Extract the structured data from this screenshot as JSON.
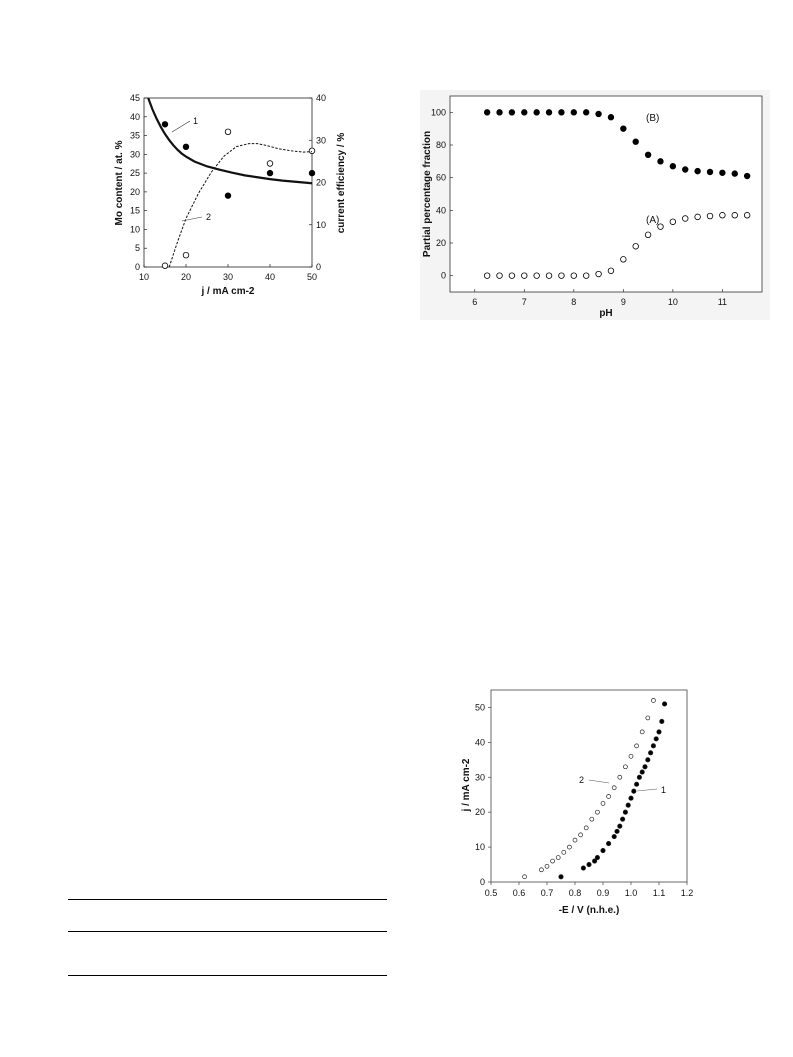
{
  "chart_data": [
    {
      "type": "scatter",
      "title": "",
      "xlabel": "j / mA cm-2",
      "ylabel": "Mo content / at. %",
      "y2label": "current efficiency / %",
      "xlim": [
        10,
        50
      ],
      "ylim": [
        0,
        45
      ],
      "y2lim": [
        0,
        40
      ],
      "xticks": [
        "10",
        "20",
        "30",
        "40",
        "50"
      ],
      "yticks": [
        "0",
        "5",
        "10",
        "15",
        "20",
        "25",
        "30",
        "35",
        "40",
        "45"
      ],
      "y2ticks": [
        "0",
        "10",
        "20",
        "30",
        "40"
      ],
      "grid": false,
      "annotations": [
        "1",
        "2"
      ],
      "series": [
        {
          "marker": "filled-circle",
          "axis": "left",
          "x": [
            15,
            20,
            30,
            40,
            50
          ],
          "y": [
            38,
            32,
            19,
            25,
            25
          ]
        },
        {
          "marker": "open-circle",
          "axis": "right",
          "x": [
            15,
            20,
            30,
            40,
            50
          ],
          "y": [
            0.3,
            2.8,
            32,
            24.5,
            27.5
          ]
        },
        {
          "line": "solid",
          "axis": "left",
          "x": [
            11,
            12,
            13,
            14,
            15,
            16,
            17,
            18,
            19,
            20,
            22,
            25,
            28,
            31,
            34,
            37,
            40,
            43,
            46,
            50
          ],
          "y": [
            45,
            42,
            39.5,
            37.3,
            35.4,
            33.8,
            32.4,
            31.2,
            30.2,
            29.4,
            28.1,
            26.8,
            25.9,
            25.1,
            24.4,
            23.9,
            23.4,
            23.0,
            22.7,
            22.3
          ]
        },
        {
          "line": "dashed",
          "axis": "right",
          "x": [
            16,
            18,
            20,
            23,
            26,
            29,
            32,
            35,
            37,
            39,
            42,
            45,
            48,
            50
          ],
          "y": [
            0,
            6,
            11.5,
            17.5,
            22.4,
            26.2,
            28.5,
            29.2,
            29.2,
            28.8,
            28.0,
            27.5,
            27.2,
            27.3
          ]
        }
      ]
    },
    {
      "type": "scatter",
      "title": "",
      "xlabel": "pH",
      "ylabel": "Partial percentage fraction",
      "xlim": [
        5.5,
        11.8
      ],
      "ylim": [
        -10,
        110
      ],
      "xticks": [
        "6",
        "7",
        "8",
        "9",
        "10",
        "11"
      ],
      "yticks": [
        "0",
        "20",
        "40",
        "60",
        "80",
        "100"
      ],
      "grid": false,
      "legend": "none",
      "series": [
        {
          "name": "(B)",
          "marker": "filled-circle",
          "x": [
            6.25,
            6.5,
            6.75,
            7.0,
            7.25,
            7.5,
            7.75,
            8.0,
            8.25,
            8.5,
            8.75,
            9.0,
            9.25,
            9.5,
            9.75,
            10.0,
            10.25,
            10.5,
            10.75,
            11.0,
            11.25,
            11.5
          ],
          "y": [
            100,
            100,
            100,
            100,
            100,
            100,
            100,
            100,
            100,
            99,
            97,
            90,
            82,
            74,
            70,
            67,
            65,
            64,
            63.5,
            63,
            62.5,
            61
          ]
        },
        {
          "name": "(A)",
          "marker": "open-circle",
          "x": [
            6.25,
            6.5,
            6.75,
            7.0,
            7.25,
            7.5,
            7.75,
            8.0,
            8.25,
            8.5,
            8.75,
            9.0,
            9.25,
            9.5,
            9.75,
            10.0,
            10.25,
            10.5,
            10.75,
            11.0,
            11.25,
            11.5
          ],
          "y": [
            0,
            0,
            0,
            0,
            0,
            0,
            0,
            0,
            0,
            1,
            3,
            10,
            18,
            25,
            30,
            33,
            35,
            36,
            36.5,
            37,
            37,
            37
          ]
        }
      ]
    },
    {
      "type": "scatter",
      "title": "",
      "xlabel": "-E / V (n.h.e.)",
      "ylabel": "j / mA cm-2",
      "xlim": [
        0.5,
        1.2
      ],
      "ylim": [
        0,
        55
      ],
      "xticks": [
        "0.5",
        "0.6",
        "0.7",
        "0.8",
        "0.9",
        "1.0",
        "1.1",
        "1.2"
      ],
      "yticks": [
        "0",
        "10",
        "20",
        "30",
        "40",
        "50"
      ],
      "grid": false,
      "annotations": [
        "1",
        "2"
      ],
      "series": [
        {
          "name": "1",
          "marker": "filled-circle",
          "x": [
            0.75,
            0.83,
            0.85,
            0.87,
            0.88,
            0.9,
            0.92,
            0.94,
            0.95,
            0.96,
            0.97,
            0.98,
            0.99,
            1.0,
            1.01,
            1.02,
            1.03,
            1.04,
            1.05,
            1.06,
            1.07,
            1.08,
            1.09,
            1.1,
            1.11,
            1.12
          ],
          "y": [
            1.5,
            4,
            5,
            6,
            7,
            9,
            11,
            13,
            14.5,
            16,
            18,
            20,
            22,
            24,
            26,
            28,
            30,
            31.5,
            33,
            35,
            37,
            39,
            41,
            43,
            46,
            51
          ]
        },
        {
          "name": "2",
          "marker": "open-circle",
          "x": [
            0.62,
            0.68,
            0.7,
            0.72,
            0.74,
            0.76,
            0.78,
            0.8,
            0.82,
            0.84,
            0.86,
            0.88,
            0.9,
            0.92,
            0.94,
            0.96,
            0.98,
            1.0,
            1.02,
            1.04,
            1.06,
            1.08
          ],
          "y": [
            1.5,
            3.5,
            4.5,
            6,
            7,
            8.5,
            10,
            12,
            13.5,
            15.5,
            18,
            20,
            22.5,
            24.5,
            27,
            30,
            33,
            36,
            39,
            43,
            47,
            52
          ]
        }
      ]
    }
  ]
}
